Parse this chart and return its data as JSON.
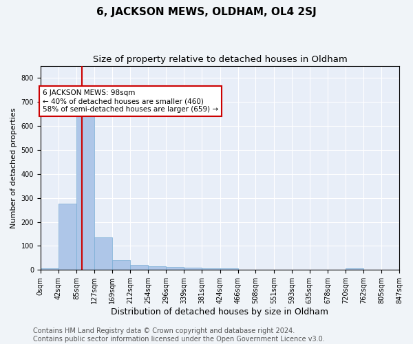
{
  "title": "6, JACKSON MEWS, OLDHAM, OL4 2SJ",
  "subtitle": "Size of property relative to detached houses in Oldham",
  "xlabel": "Distribution of detached houses by size in Oldham",
  "ylabel": "Number of detached properties",
  "bar_color": "#aec6e8",
  "bar_edge_color": "#7aaed6",
  "background_color": "#e8eef8",
  "grid_color": "#ffffff",
  "fig_facecolor": "#f0f4f8",
  "bin_edges": [
    0,
    42,
    85,
    127,
    169,
    212,
    254,
    296,
    339,
    381,
    424,
    466,
    508,
    551,
    593,
    635,
    678,
    720,
    762,
    805,
    847
  ],
  "bar_heights": [
    8,
    275,
    645,
    135,
    40,
    20,
    15,
    12,
    10,
    7,
    8,
    0,
    0,
    0,
    0,
    0,
    0,
    8,
    0,
    0
  ],
  "property_size": 98,
  "red_line_color": "#cc0000",
  "annotation_text": "6 JACKSON MEWS: 98sqm\n← 40% of detached houses are smaller (460)\n58% of semi-detached houses are larger (659) →",
  "annotation_box_color": "#ffffff",
  "annotation_box_edge": "#cc0000",
  "ylim": [
    0,
    850
  ],
  "yticks": [
    0,
    100,
    200,
    300,
    400,
    500,
    600,
    700,
    800
  ],
  "tick_labels": [
    "0sqm",
    "42sqm",
    "85sqm",
    "127sqm",
    "169sqm",
    "212sqm",
    "254sqm",
    "296sqm",
    "339sqm",
    "381sqm",
    "424sqm",
    "466sqm",
    "508sqm",
    "551sqm",
    "593sqm",
    "635sqm",
    "678sqm",
    "720sqm",
    "762sqm",
    "805sqm",
    "847sqm"
  ],
  "footer_text": "Contains HM Land Registry data © Crown copyright and database right 2024.\nContains public sector information licensed under the Open Government Licence v3.0.",
  "title_fontsize": 11,
  "subtitle_fontsize": 9.5,
  "xlabel_fontsize": 9,
  "ylabel_fontsize": 8,
  "tick_fontsize": 7,
  "footer_fontsize": 7
}
